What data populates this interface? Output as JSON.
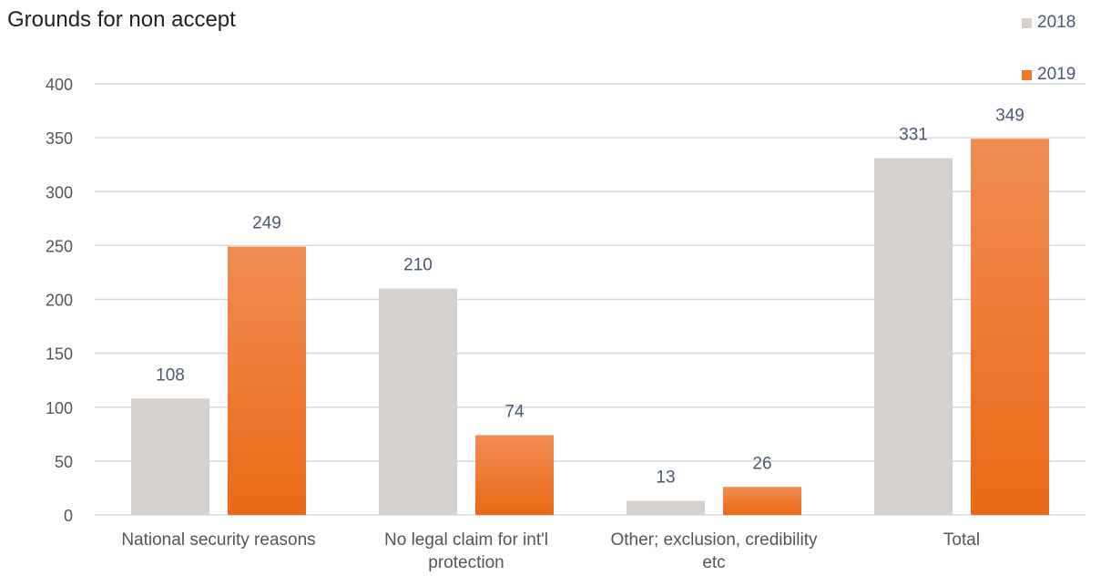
{
  "chart_data": {
    "type": "bar",
    "title": "Grounds for non accept",
    "categories": [
      [
        "National security reasons"
      ],
      [
        "No legal claim for int'l",
        "protection"
      ],
      [
        "Other; exclusion, credibility",
        "etc"
      ],
      [
        "Total"
      ]
    ],
    "series": [
      {
        "name": "2018",
        "values": [
          108,
          210,
          13,
          331
        ],
        "color": "#d6d1cc"
      },
      {
        "name": "2019",
        "values": [
          249,
          74,
          26,
          349
        ],
        "color": "#f07a24"
      }
    ],
    "ylim": [
      0,
      400
    ],
    "yticks": [
      0,
      50,
      100,
      150,
      200,
      250,
      300,
      350,
      400
    ],
    "grid": true,
    "legend_placement": "top-right"
  }
}
